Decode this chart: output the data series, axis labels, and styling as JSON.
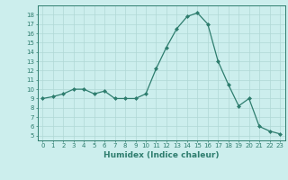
{
  "x": [
    0,
    1,
    2,
    3,
    4,
    5,
    6,
    7,
    8,
    9,
    10,
    11,
    12,
    13,
    14,
    15,
    16,
    17,
    18,
    19,
    20,
    21,
    22,
    23
  ],
  "y": [
    9,
    9.2,
    9.5,
    10,
    10,
    9.5,
    9.8,
    9,
    9,
    9,
    9.5,
    12.2,
    14.5,
    16.5,
    17.8,
    18.2,
    17,
    13,
    10.5,
    8.2,
    9,
    6,
    5.5,
    5.2
  ],
  "line_color": "#2e7d6e",
  "marker": "D",
  "marker_size": 2,
  "bg_color": "#cceeed",
  "grid_color": "#b0d8d6",
  "xlabel": "Humidex (Indice chaleur)",
  "xlim": [
    -0.5,
    23.5
  ],
  "ylim": [
    4.5,
    19
  ],
  "yticks": [
    5,
    6,
    7,
    8,
    9,
    10,
    11,
    12,
    13,
    14,
    15,
    16,
    17,
    18
  ],
  "xticks": [
    0,
    1,
    2,
    3,
    4,
    5,
    6,
    7,
    8,
    9,
    10,
    11,
    12,
    13,
    14,
    15,
    16,
    17,
    18,
    19,
    20,
    21,
    22,
    23
  ],
  "tick_fontsize": 5,
  "xlabel_fontsize": 6.5
}
